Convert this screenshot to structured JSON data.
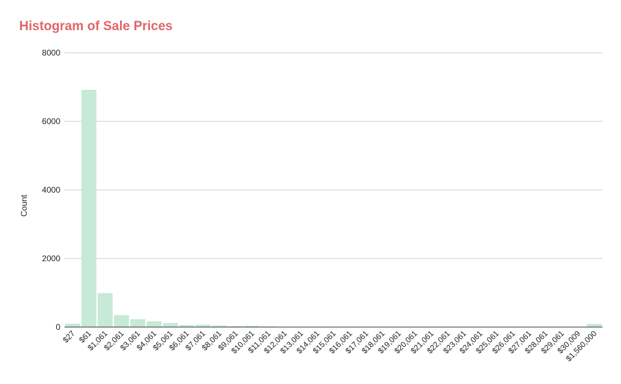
{
  "chart_data": {
    "type": "bar",
    "title": "Histogram of Sale Prices",
    "xlabel": "",
    "ylabel": "Count",
    "ylim": [
      0,
      8000
    ],
    "yticks": [
      0,
      2000,
      4000,
      6000,
      8000
    ],
    "grid": true,
    "bar_color": "#c6e9d8",
    "title_color": "#e06666",
    "categories": [
      "$27",
      "$61",
      "$1,061",
      "$2,061",
      "$3,061",
      "$4,061",
      "$5,061",
      "$6,061",
      "$7,061",
      "$8,061",
      "$9,061",
      "$10,061",
      "$11,061",
      "$12,061",
      "$13,061",
      "$14,061",
      "$15,061",
      "$16,061",
      "$17,061",
      "$18,061",
      "$19,061",
      "$20,061",
      "$21,061",
      "$22,061",
      "$23,061",
      "$24,061",
      "$25,061",
      "$26,061",
      "$27,061",
      "$28,061",
      "$29,061",
      "$30,009",
      "$1,560,000"
    ],
    "values": [
      100,
      6920,
      990,
      350,
      230,
      170,
      120,
      60,
      70,
      50,
      30,
      40,
      20,
      10,
      5,
      5,
      10,
      5,
      10,
      5,
      5,
      3,
      3,
      3,
      3,
      3,
      3,
      3,
      3,
      3,
      3,
      3,
      95
    ]
  }
}
